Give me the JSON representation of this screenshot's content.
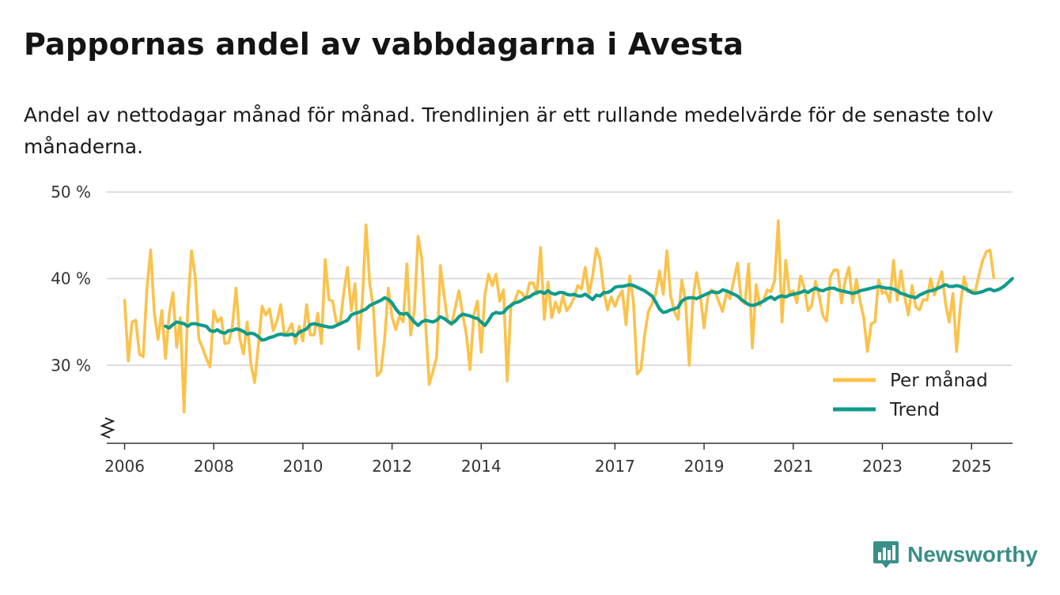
{
  "title": "Pappornas andel av vabbdagarna i Avesta",
  "subtitle": "Andel av nettodagar månad för månad. Trendlinjen är ett rullande medelvärde för de senaste tolv månaderna.",
  "brand": {
    "name": "Newsworthy",
    "color": "#3a8f89"
  },
  "chart_data": {
    "type": "line",
    "title": "Pappornas andel av vabbdagarna i Avesta",
    "xlabel": "",
    "ylabel": "",
    "xlim": [
      2005.6,
      2025.92
    ],
    "ylim": [
      21,
      51
    ],
    "x_ticks": [
      {
        "value": 2006,
        "label": "2006"
      },
      {
        "value": 2008,
        "label": "2008"
      },
      {
        "value": 2010,
        "label": "2010"
      },
      {
        "value": 2012,
        "label": "2012"
      },
      {
        "value": 2014,
        "label": "2014"
      },
      {
        "value": 2017,
        "label": "2017"
      },
      {
        "value": 2019,
        "label": "2019"
      },
      {
        "value": 2021,
        "label": "2021"
      },
      {
        "value": 2023,
        "label": "2023"
      },
      {
        "value": 2025,
        "label": "2025"
      }
    ],
    "y_ticks": [
      {
        "value": 30,
        "label": "30 %"
      },
      {
        "value": 40,
        "label": "40 %"
      },
      {
        "value": 50,
        "label": "50 %"
      }
    ],
    "grid": true,
    "axis_break": true,
    "legend_position": "bottom-right",
    "series": [
      {
        "name": "Per månad",
        "color": "#fbc24b",
        "start": 2006.0,
        "step": 0.08333,
        "values": [
          37.5,
          30.5,
          35,
          35.2,
          31.3,
          31,
          38.8,
          43.3,
          36,
          33,
          36.3,
          30.8,
          35.9,
          38.4,
          32.1,
          35.5,
          24.6,
          36.7,
          43.2,
          40.2,
          33,
          32,
          30.8,
          29.8,
          36.3,
          35,
          35.5,
          32.5,
          32.6,
          34.5,
          38.9,
          33.1,
          31.3,
          35,
          30.1,
          28,
          32.3,
          36.8,
          35.8,
          36.5,
          34,
          35.1,
          37,
          33.5,
          33.9,
          34.8,
          32.5,
          34.5,
          32.8,
          37,
          33.5,
          33.5,
          36,
          32.5,
          42.2,
          37.6,
          37.4,
          35,
          34.7,
          38.4,
          41.3,
          36.3,
          39.4,
          31.9,
          37.5,
          46.2,
          39.4,
          36.5,
          28.8,
          29.3,
          33,
          38.9,
          35.6,
          34.1,
          35.7,
          35,
          41.7,
          33.5,
          36.3,
          44.9,
          42.3,
          35,
          27.8,
          29.3,
          31,
          41.5,
          38.1,
          35,
          34.7,
          36.6,
          38.6,
          35.9,
          33.6,
          29.5,
          35.8,
          37.4,
          31.5,
          38.2,
          40.5,
          39.2,
          40.5,
          37.4,
          38.7,
          28.2,
          37,
          37.4,
          38.6,
          38.3,
          37.6,
          39.5,
          39.5,
          38.2,
          43.6,
          35.3,
          39.6,
          35.5,
          37.3,
          36.1,
          38,
          36.3,
          36.9,
          37.8,
          39.2,
          38.8,
          41.3,
          38.2,
          40.3,
          43.5,
          42.2,
          38.5,
          36.4,
          37.9,
          36.8,
          37.9,
          38.6,
          34.7,
          40.3,
          37.3,
          29,
          29.5,
          33.5,
          36.2,
          37.1,
          38.3,
          40.9,
          38.2,
          43.2,
          38,
          36.2,
          35.3,
          39.8,
          37.5,
          30,
          37.7,
          40.7,
          38.1,
          34.3,
          37.8,
          38.7,
          38.5,
          37.3,
          36.2,
          38.3,
          37.7,
          39.8,
          41.8,
          37.5,
          37.1,
          41.7,
          32,
          39.3,
          36.9,
          37.5,
          38.7,
          38.5,
          39.8,
          46.7,
          35,
          42.1,
          38.3,
          38.6,
          37.2,
          40.3,
          39,
          36.3,
          36.9,
          39.7,
          38,
          35.7,
          35.1,
          40.2,
          41,
          41,
          37.2,
          39.8,
          41.3,
          37.2,
          39.9,
          37.4,
          35.5,
          31.6,
          34.8,
          35,
          39.9,
          38.3,
          38.5,
          37.3,
          42.1,
          37.5,
          40.9,
          38,
          35.8,
          39.2,
          36.7,
          36.4,
          37.6,
          37.5,
          40,
          38.1,
          39.4,
          40.8,
          37.2,
          35,
          38.3,
          31.6,
          36.8,
          40.2,
          38.5,
          38.7,
          38.5,
          40.4,
          42.1,
          43.1,
          43.3,
          40.1
        ]
      },
      {
        "name": "Trend",
        "color": "#0e9b8c",
        "start": 2006.917,
        "step": 0.08333,
        "values": [
          34.5,
          34.3,
          34.7,
          35,
          34.9,
          34.8,
          34.5,
          34.8,
          34.8,
          34.7,
          34.6,
          34.5,
          34,
          33.9,
          34.1,
          33.8,
          33.7,
          34,
          34,
          34.2,
          34.1,
          33.9,
          33.6,
          33.7,
          33.6,
          33.3,
          32.9,
          33,
          33.2,
          33.3,
          33.5,
          33.6,
          33.5,
          33.5,
          33.6,
          33.4,
          33.8,
          34,
          34.2,
          34.7,
          34.8,
          34.7,
          34.6,
          34.5,
          34.4,
          34.4,
          34.6,
          34.8,
          35,
          35.2,
          35.8,
          36,
          36.1,
          36.3,
          36.5,
          36.9,
          37.1,
          37.3,
          37.5,
          37.8,
          37.6,
          37.2,
          36.5,
          36,
          35.9,
          36,
          35.5,
          35,
          34.6,
          35,
          35.2,
          35.1,
          35,
          35.2,
          35.6,
          35.4,
          35.1,
          34.8,
          35.1,
          35.6,
          35.9,
          35.8,
          35.7,
          35.5,
          35.4,
          35,
          34.6,
          35.2,
          35.9,
          36.1,
          36,
          36.1,
          36.6,
          36.9,
          37.2,
          37.3,
          37.5,
          37.8,
          37.9,
          38.2,
          38.4,
          38.5,
          38.3,
          38.6,
          38.3,
          38.2,
          38.4,
          38.4,
          38.2,
          38.1,
          38.2,
          38,
          38,
          38.2,
          37.9,
          37.6,
          38.1,
          38,
          38.4,
          38.4,
          38.6,
          39,
          39.1,
          39.1,
          39.2,
          39.3,
          39.2,
          39,
          38.8,
          38.6,
          38.3,
          38,
          37.3,
          36.5,
          36.1,
          36.2,
          36.4,
          36.5,
          36.7,
          37.4,
          37.7,
          37.8,
          37.8,
          37.7,
          37.9,
          38.1,
          38.3,
          38.5,
          38.4,
          38.4,
          38.7,
          38.6,
          38.4,
          38.2,
          38,
          37.6,
          37.3,
          37,
          36.9,
          37,
          37.2,
          37.4,
          37.7,
          37.9,
          37.6,
          37.9,
          38,
          37.9,
          38.1,
          38.2,
          38.3,
          38.4,
          38.6,
          38.4,
          38.7,
          38.9,
          38.7,
          38.6,
          38.8,
          38.9,
          38.9,
          38.7,
          38.6,
          38.5,
          38.4,
          38.3,
          38.4,
          38.6,
          38.7,
          38.8,
          38.9,
          39,
          39.1,
          39,
          38.9,
          38.9,
          38.8,
          38.6,
          38.3,
          38.2,
          38,
          37.9,
          37.8,
          38.1,
          38.3,
          38.5,
          38.6,
          38.7,
          38.9,
          39.1,
          39.3,
          39.1,
          39.1,
          39.2,
          39.1,
          38.9,
          38.7,
          38.4,
          38.3,
          38.4,
          38.5,
          38.7,
          38.8,
          38.6,
          38.7,
          38.9,
          39.2,
          39.6,
          40
        ]
      }
    ]
  }
}
